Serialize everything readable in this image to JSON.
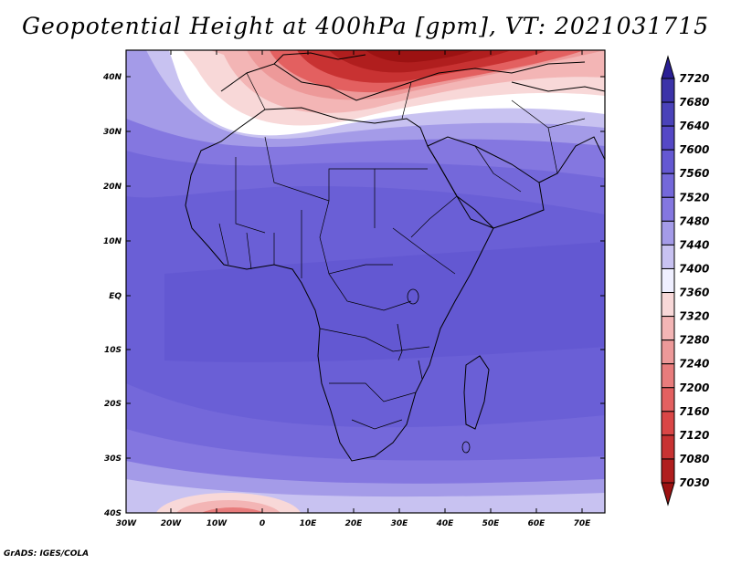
{
  "title": "Geopotential Height at 400hPa [gpm], VT: 2021031715",
  "credit": "GrADS: IGES/COLA",
  "map": {
    "lat_ticks": [
      "40N",
      "30N",
      "20N",
      "10N",
      "EQ",
      "10S",
      "20S",
      "30S",
      "40S"
    ],
    "lon_ticks": [
      "30W",
      "20W",
      "10W",
      "0",
      "10E",
      "20E",
      "30E",
      "40E",
      "50E",
      "60E",
      "70E"
    ]
  },
  "colorbar": {
    "levels": [
      "7720",
      "7680",
      "7640",
      "7600",
      "7560",
      "7520",
      "7480",
      "7440",
      "7400",
      "7360",
      "7320",
      "7280",
      "7240",
      "7200",
      "7160",
      "7120",
      "7080",
      "7030"
    ],
    "colors": [
      "#2a1f94",
      "#3c33a8",
      "#4a42b9",
      "#5548c6",
      "#6458d2",
      "#7468da",
      "#8477e0",
      "#a49be8",
      "#c8c2f1",
      "#efefff",
      "#f8d8d8",
      "#f3b5b5",
      "#ed9999",
      "#e87c7c",
      "#e36060",
      "#da4646",
      "#c83232",
      "#b01e1e",
      "#9c1212"
    ]
  }
}
